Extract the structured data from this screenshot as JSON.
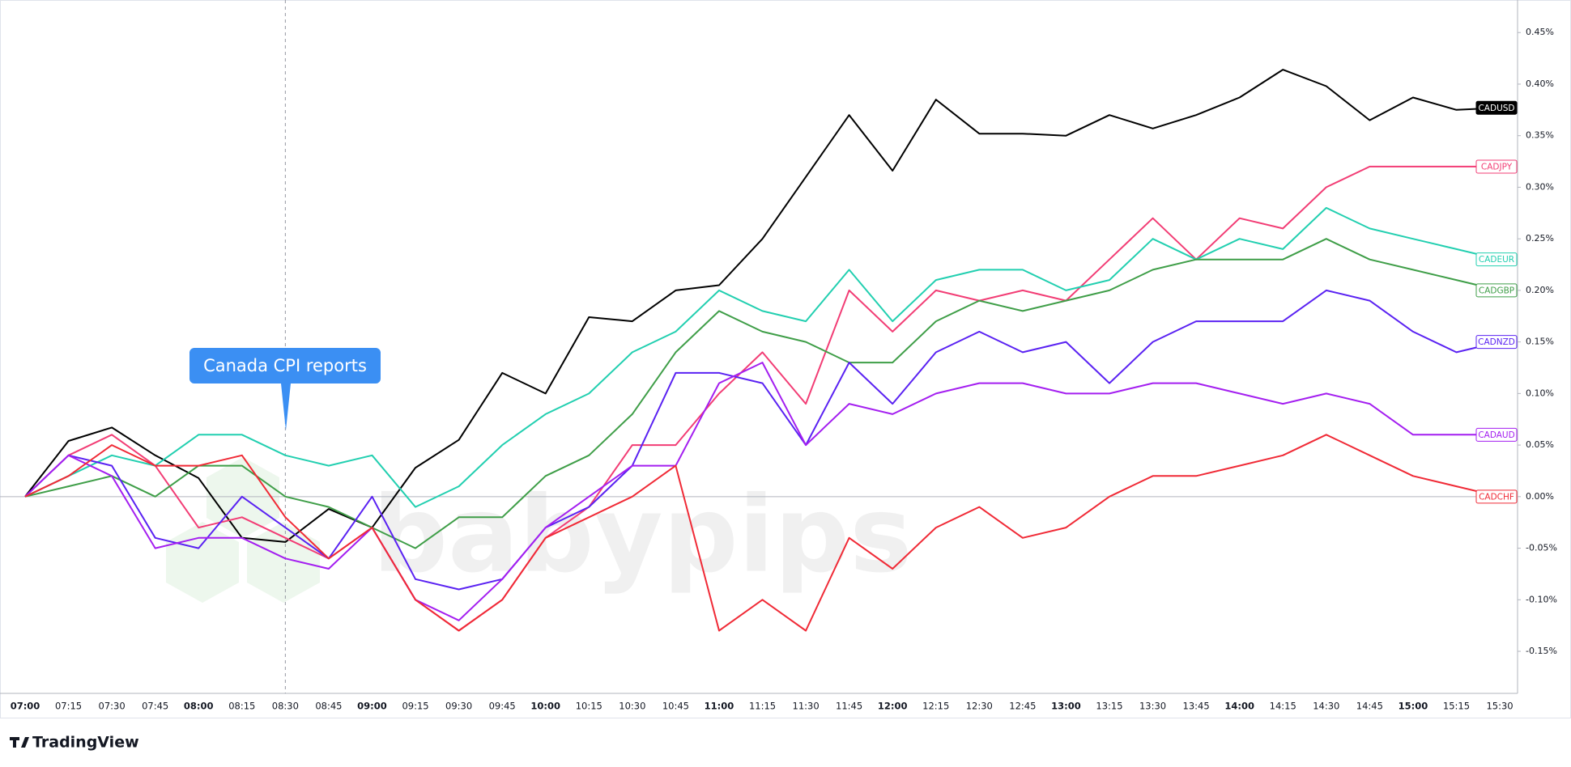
{
  "chart_data": {
    "type": "line",
    "categories": [
      "07:00",
      "07:15",
      "07:30",
      "07:45",
      "08:00",
      "08:15",
      "08:30",
      "08:45",
      "09:00",
      "09:15",
      "09:30",
      "09:45",
      "10:00",
      "10:15",
      "10:30",
      "10:45",
      "11:00",
      "11:15",
      "11:30",
      "11:45",
      "12:00",
      "12:15",
      "12:30",
      "12:45",
      "13:00",
      "13:15",
      "13:30",
      "13:45",
      "14:00",
      "14:15",
      "14:30",
      "14:45",
      "15:00",
      "15:15",
      "15:30"
    ],
    "series": [
      {
        "name": "CADUSD",
        "color": "#000000",
        "values": [
          0,
          0.054,
          0.067,
          0.04,
          0.018,
          -0.04,
          -0.044,
          -0.012,
          -0.03,
          0.028,
          0.055,
          0.12,
          0.1,
          0.174,
          0.17,
          0.2,
          0.205,
          0.25,
          0.31,
          0.37,
          0.316,
          0.385,
          0.352,
          0.352,
          0.35,
          0.37,
          0.357,
          0.37,
          0.387,
          0.414,
          0.398,
          0.365,
          0.387,
          0.375,
          0.377
        ]
      },
      {
        "name": "CADJPY",
        "color": "#f23d75",
        "values": [
          0,
          0.04,
          0.06,
          0.03,
          -0.03,
          -0.02,
          -0.04,
          -0.06,
          -0.03,
          -0.1,
          -0.13,
          -0.1,
          -0.04,
          -0.01,
          0.05,
          0.05,
          0.1,
          0.14,
          0.09,
          0.2,
          0.16,
          0.2,
          0.19,
          0.2,
          0.19,
          0.23,
          0.27,
          0.23,
          0.27,
          0.26,
          0.3,
          0.32,
          0.32,
          0.32,
          0.32
        ]
      },
      {
        "name": "CADEUR",
        "color": "#22cfb0",
        "values": [
          0,
          0.02,
          0.04,
          0.03,
          0.06,
          0.06,
          0.04,
          0.03,
          0.04,
          -0.01,
          0.01,
          0.05,
          0.08,
          0.1,
          0.14,
          0.16,
          0.2,
          0.18,
          0.17,
          0.22,
          0.17,
          0.21,
          0.22,
          0.22,
          0.2,
          0.21,
          0.25,
          0.23,
          0.25,
          0.24,
          0.28,
          0.26,
          0.25,
          0.24,
          0.23
        ]
      },
      {
        "name": "CADGBP",
        "color": "#3f9e48",
        "values": [
          0,
          0.01,
          0.02,
          0,
          0.03,
          0.03,
          0,
          -0.01,
          -0.03,
          -0.05,
          -0.02,
          -0.02,
          0.02,
          0.04,
          0.08,
          0.14,
          0.18,
          0.16,
          0.15,
          0.13,
          0.13,
          0.17,
          0.19,
          0.18,
          0.19,
          0.2,
          0.22,
          0.23,
          0.23,
          0.23,
          0.25,
          0.23,
          0.22,
          0.21,
          0.2
        ]
      },
      {
        "name": "CADNZD",
        "color": "#5a22f2",
        "values": [
          0,
          0.04,
          0.03,
          -0.04,
          -0.05,
          0,
          -0.03,
          -0.06,
          0,
          -0.08,
          -0.09,
          -0.08,
          -0.03,
          -0.01,
          0.03,
          0.12,
          0.12,
          0.11,
          0.05,
          0.13,
          0.09,
          0.14,
          0.16,
          0.14,
          0.15,
          0.11,
          0.15,
          0.17,
          0.17,
          0.17,
          0.2,
          0.19,
          0.16,
          0.14,
          0.15
        ]
      },
      {
        "name": "CADAUD",
        "color": "#a41ff0",
        "values": [
          0,
          0.04,
          0.02,
          -0.05,
          -0.04,
          -0.04,
          -0.06,
          -0.07,
          -0.03,
          -0.1,
          -0.12,
          -0.08,
          -0.03,
          0,
          0.03,
          0.03,
          0.11,
          0.13,
          0.05,
          0.09,
          0.08,
          0.1,
          0.11,
          0.11,
          0.1,
          0.1,
          0.11,
          0.11,
          0.1,
          0.09,
          0.1,
          0.09,
          0.06,
          0.06,
          0.06
        ]
      },
      {
        "name": "CADCHF",
        "color": "#f02a36",
        "values": [
          0,
          0.02,
          0.05,
          0.03,
          0.03,
          0.04,
          -0.02,
          -0.06,
          -0.03,
          -0.1,
          -0.13,
          -0.1,
          -0.04,
          -0.02,
          0,
          0.03,
          -0.13,
          -0.1,
          -0.13,
          -0.04,
          -0.07,
          -0.03,
          -0.01,
          -0.04,
          -0.03,
          0,
          0.02,
          0.02,
          0.03,
          0.04,
          0.06,
          0.04,
          0.02,
          0.01,
          0
        ]
      }
    ],
    "ylim": [
      -0.19,
      0.48
    ],
    "yticks": [
      {
        "value": -0.15,
        "label": "-0.15%"
      },
      {
        "value": -0.1,
        "label": "-0.10%"
      },
      {
        "value": -0.05,
        "label": "-0.05%"
      },
      {
        "value": 0,
        "label": "0.00%"
      },
      {
        "value": 0.05,
        "label": "0.05%"
      },
      {
        "value": 0.1,
        "label": "0.10%"
      },
      {
        "value": 0.15,
        "label": "0.15%"
      },
      {
        "value": 0.2,
        "label": "0.20%"
      },
      {
        "value": 0.25,
        "label": "0.25%"
      },
      {
        "value": 0.3,
        "label": "0.30%"
      },
      {
        "value": 0.35,
        "label": "0.35%"
      },
      {
        "value": 0.4,
        "label": "0.40%"
      },
      {
        "value": 0.45,
        "label": "0.45%"
      }
    ],
    "zero_line": true,
    "grid": false,
    "annotation": {
      "text": "Canada CPI reports",
      "x": "08:30"
    },
    "watermark": "babypips",
    "brand": "TradingView"
  }
}
